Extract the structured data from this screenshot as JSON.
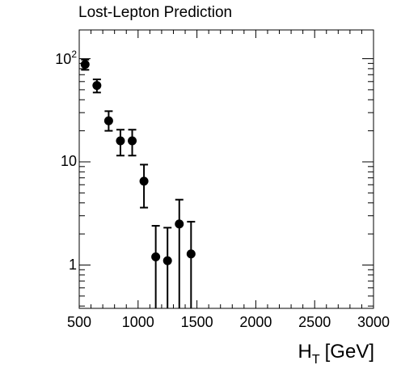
{
  "chart_data": {
    "type": "scatter",
    "title": "Lost-Lepton Prediction",
    "xlabel": "H",
    "xlabel_sub": "T",
    "xlabel_unit": "[GeV]",
    "ylabel": "",
    "xlim": [
      500,
      3000
    ],
    "ylim": [
      0.38,
      190
    ],
    "yscale": "log",
    "x_ticks": [
      500,
      1000,
      1500,
      2000,
      2500,
      3000
    ],
    "x_tick_labels": [
      "500",
      "1000",
      "1500",
      "2000",
      "2500",
      "3000"
    ],
    "y_tick_labels": {
      "hundred_base": "10",
      "hundred_exp": "2",
      "ten": "10",
      "one": "1"
    },
    "series": [
      {
        "name": "Lost-Lepton Prediction",
        "x": [
          550,
          650,
          750,
          850,
          950,
          1050,
          1150,
          1250,
          1350,
          1450
        ],
        "y": [
          88,
          55,
          25,
          16,
          16,
          6.5,
          1.2,
          1.1,
          2.5,
          1.28
        ],
        "y_err_low": [
          10,
          8,
          5,
          4.5,
          4.5,
          2.9,
          1.2,
          1.1,
          2.5,
          1.28
        ],
        "y_err_high": [
          10,
          8,
          6,
          4.5,
          4.5,
          2.9,
          1.2,
          1.2,
          1.8,
          1.35
        ]
      }
    ]
  }
}
